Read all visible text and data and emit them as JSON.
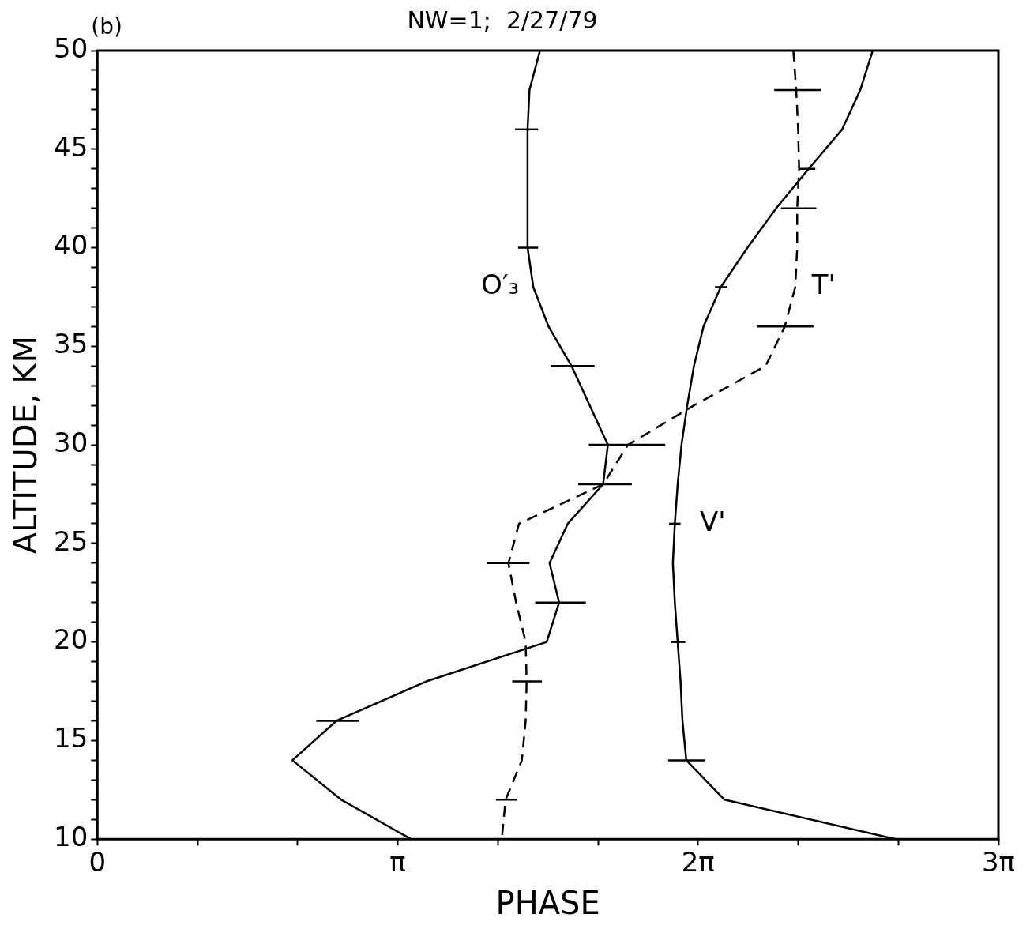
{
  "chart_data": {
    "type": "line",
    "title": "NW=1;  2/27/79",
    "xlabel": "PHASE",
    "ylabel": "ALTITUDE, KM",
    "annotations": [
      "(b)"
    ],
    "xlim": [
      0,
      9.4248
    ],
    "ylim": [
      10,
      50
    ],
    "xticks": [
      {
        "value": 0,
        "label": "0"
      },
      {
        "value": 1.0472,
        "label": null
      },
      {
        "value": 2.0944,
        "label": null
      },
      {
        "value": 3.1416,
        "label": "π"
      },
      {
        "value": 4.1888,
        "label": null
      },
      {
        "value": 5.236,
        "label": null
      },
      {
        "value": 6.2832,
        "label": "2π"
      },
      {
        "value": 7.3304,
        "label": null
      },
      {
        "value": 8.3776,
        "label": null
      },
      {
        "value": 9.4248,
        "label": "3π"
      }
    ],
    "yticks": [
      10,
      {
        "value": 11,
        "label": null
      },
      {
        "value": 12,
        "label": null
      },
      {
        "value": 13,
        "label": null
      },
      {
        "value": 14,
        "label": null
      },
      15,
      {
        "value": 16,
        "label": null
      },
      {
        "value": 17,
        "label": null
      },
      {
        "value": 18,
        "label": null
      },
      {
        "value": 19,
        "label": null
      },
      20,
      {
        "value": 21,
        "label": null
      },
      {
        "value": 22,
        "label": null
      },
      {
        "value": 23,
        "label": null
      },
      {
        "value": 24,
        "label": null
      },
      25,
      {
        "value": 26,
        "label": null
      },
      {
        "value": 27,
        "label": null
      },
      {
        "value": 28,
        "label": null
      },
      {
        "value": 29,
        "label": null
      },
      30,
      {
        "value": 31,
        "label": null
      },
      {
        "value": 32,
        "label": null
      },
      {
        "value": 33,
        "label": null
      },
      {
        "value": 34,
        "label": null
      },
      35,
      {
        "value": 36,
        "label": null
      },
      {
        "value": 37,
        "label": null
      },
      {
        "value": 38,
        "label": null
      },
      {
        "value": 39,
        "label": null
      },
      40,
      {
        "value": 41,
        "label": null
      },
      {
        "value": 42,
        "label": null
      },
      {
        "value": 43,
        "label": null
      },
      {
        "value": 44,
        "label": null
      },
      45,
      {
        "value": 46,
        "label": null
      },
      {
        "value": 47,
        "label": null
      },
      {
        "value": 48,
        "label": null
      },
      {
        "value": 49,
        "label": null
      },
      50
    ],
    "grid": false,
    "legend": false,
    "marker": "none",
    "series": [
      {
        "name": "O′₃",
        "color": "#000000",
        "line_style": "solid",
        "x": [
          4.63,
          4.52,
          4.5,
          4.5,
          4.56,
          4.72,
          4.96,
          5.34,
          5.29,
          4.92,
          4.73,
          4.83,
          4.7,
          3.44,
          2.5,
          2.04,
          2.55,
          3.28
        ],
        "values": [
          50,
          48,
          46,
          40,
          38,
          36,
          34,
          30,
          28,
          26,
          24,
          22,
          20,
          18,
          16,
          14,
          12,
          10
        ],
        "xerrors": [
          null,
          null,
          [
            4.37,
            4.61
          ],
          [
            4.4,
            4.61
          ],
          null,
          null,
          [
            4.74,
            5.2
          ],
          null,
          [
            5.03,
            5.59
          ],
          null,
          null,
          [
            4.58,
            5.11
          ],
          null,
          null,
          [
            2.29,
            2.74
          ],
          null,
          null,
          null
        ]
      },
      {
        "name": "T'",
        "color": "#000000",
        "line_style": "dashed",
        "x": [
          7.28,
          7.31,
          7.33,
          7.34,
          7.32,
          7.32,
          7.3,
          7.19,
          6.99,
          6.24,
          5.55,
          5.29,
          4.41,
          4.3,
          4.38,
          4.48,
          4.49,
          4.48,
          4.44,
          4.27,
          4.23
        ],
        "values": [
          50,
          48,
          46,
          44,
          42,
          40,
          38,
          36,
          34,
          32,
          30,
          28,
          26,
          24,
          22,
          20,
          18,
          16,
          14,
          12,
          10
        ],
        "xerrors": [
          null,
          [
            7.08,
            7.57
          ],
          null,
          null,
          [
            7.15,
            7.52
          ],
          null,
          null,
          [
            6.9,
            7.49
          ],
          null,
          null,
          [
            5.14,
            5.94
          ],
          null,
          null,
          [
            4.07,
            4.52
          ],
          null,
          null,
          [
            4.34,
            4.65
          ],
          null,
          null,
          [
            4.17,
            4.39
          ],
          null
        ]
      },
      {
        "name": "V'",
        "color": "#000000",
        "line_style": "solid",
        "x": [
          8.11,
          7.98,
          7.79,
          7.44,
          7.1,
          6.8,
          6.52,
          6.34,
          6.24,
          6.17,
          6.11,
          6.07,
          6.04,
          6.02,
          6.04,
          6.07,
          6.1,
          6.12,
          6.16,
          6.56,
          8.35
        ],
        "values": [
          50,
          48,
          46,
          44,
          42,
          40,
          38,
          36,
          34,
          32,
          30,
          28,
          26,
          24,
          22,
          20,
          18,
          16,
          14,
          12,
          10
        ],
        "xerrors": [
          null,
          null,
          null,
          [
            7.35,
            7.51
          ],
          null,
          null,
          [
            6.46,
            6.59
          ],
          null,
          null,
          null,
          null,
          null,
          [
            5.98,
            6.1
          ],
          null,
          null,
          [
            6.0,
            6.15
          ],
          null,
          null,
          [
            5.97,
            6.36
          ],
          null,
          null
        ]
      }
    ]
  }
}
